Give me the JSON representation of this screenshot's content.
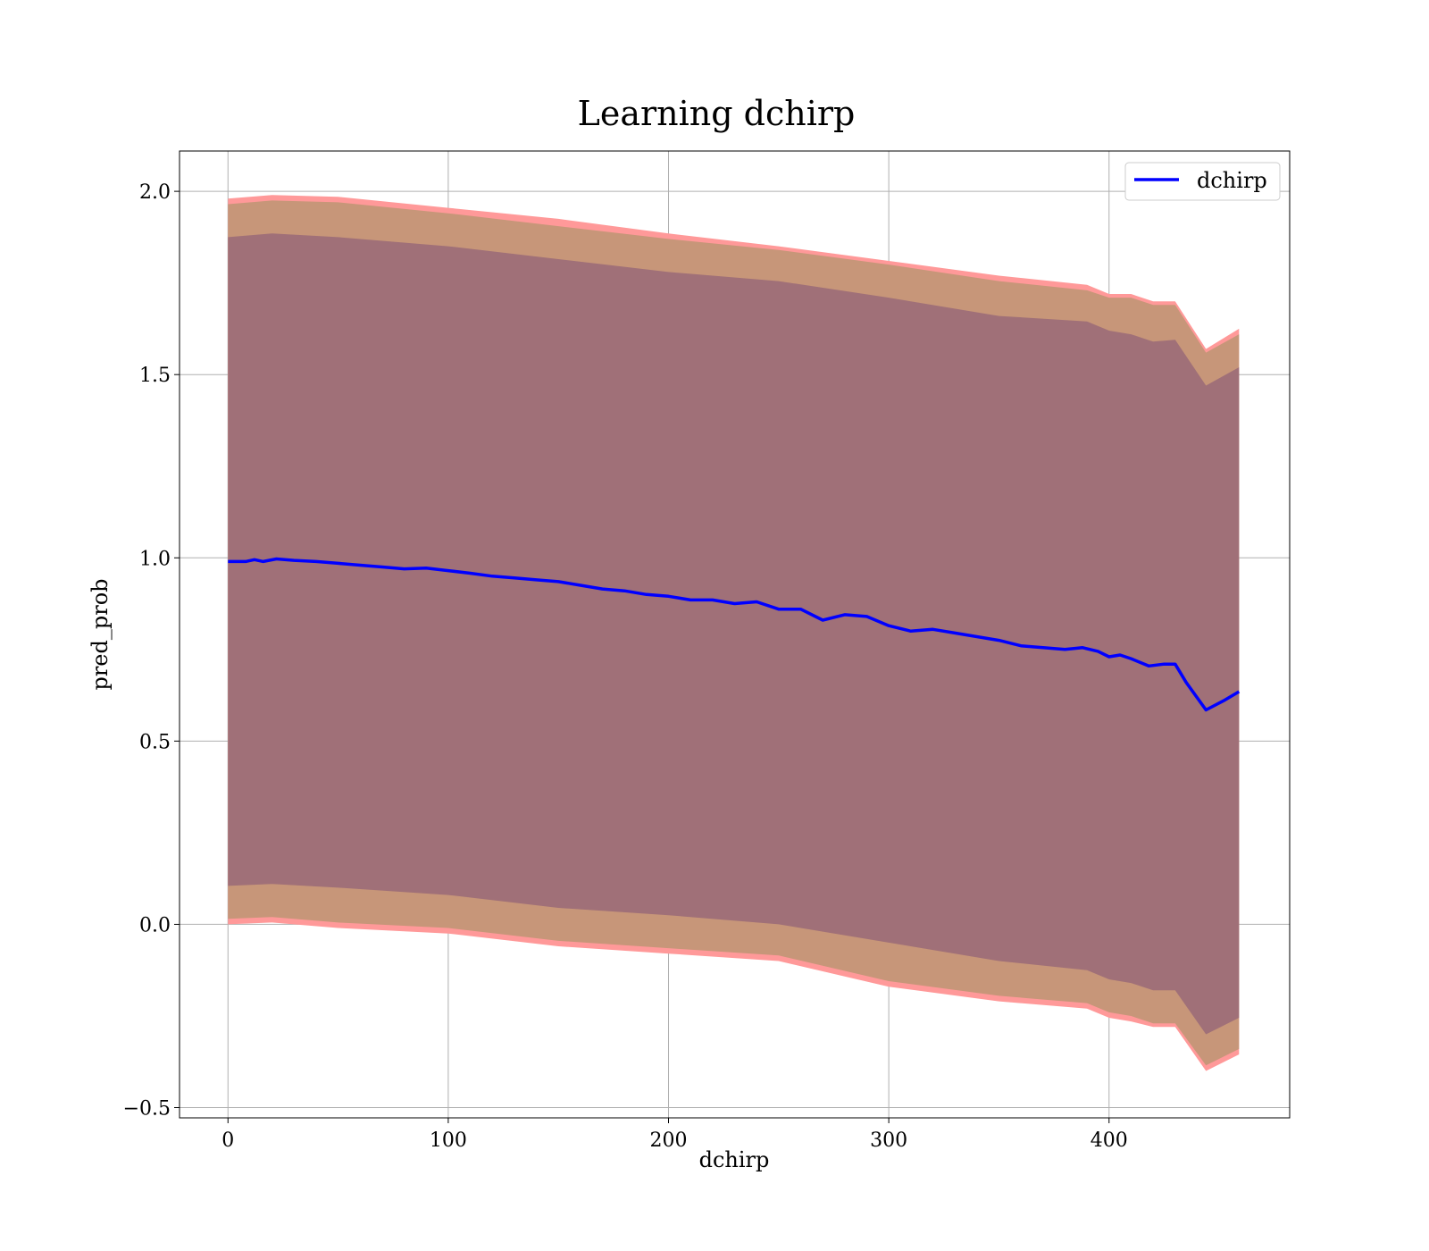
{
  "chart_data": {
    "type": "line",
    "title": "Learning dchirp",
    "xlabel": "dchirp",
    "ylabel": "pred_prob",
    "xlim": [
      -22,
      482
    ],
    "ylim": [
      -0.528,
      2.11
    ],
    "xticks": [
      0,
      100,
      200,
      300,
      400
    ],
    "xtick_labels": [
      "0",
      "100",
      "200",
      "300",
      "400"
    ],
    "yticks": [
      -0.5,
      0.0,
      0.5,
      1.0,
      1.5,
      2.0
    ],
    "ytick_labels": [
      "−0.5",
      "0.0",
      "0.5",
      "1.0",
      "1.5",
      "2.0"
    ],
    "grid": true,
    "legend": {
      "position": "top-right",
      "entries": [
        "dchirp"
      ]
    },
    "series": [
      {
        "name": "dchirp",
        "color": "#0000ff",
        "x": [
          0,
          8,
          12,
          16,
          22,
          30,
          40,
          50,
          60,
          70,
          80,
          90,
          100,
          110,
          120,
          130,
          140,
          150,
          160,
          170,
          180,
          190,
          200,
          210,
          220,
          230,
          240,
          250,
          260,
          270,
          280,
          290,
          300,
          310,
          320,
          330,
          340,
          350,
          360,
          370,
          380,
          388,
          395,
          400,
          405,
          410,
          418,
          425,
          430,
          435,
          444,
          452,
          459
        ],
        "y": [
          0.99,
          0.99,
          0.995,
          0.99,
          0.997,
          0.993,
          0.99,
          0.985,
          0.98,
          0.975,
          0.97,
          0.972,
          0.965,
          0.958,
          0.95,
          0.945,
          0.94,
          0.935,
          0.925,
          0.915,
          0.91,
          0.9,
          0.895,
          0.885,
          0.885,
          0.875,
          0.88,
          0.86,
          0.86,
          0.83,
          0.845,
          0.84,
          0.815,
          0.8,
          0.805,
          0.795,
          0.785,
          0.775,
          0.76,
          0.755,
          0.75,
          0.755,
          0.745,
          0.73,
          0.735,
          0.725,
          0.705,
          0.71,
          0.71,
          0.66,
          0.585,
          0.61,
          0.635
        ]
      }
    ],
    "bands": [
      {
        "name": "outer",
        "color": "#ff9999",
        "x": [
          0,
          20,
          50,
          100,
          150,
          200,
          250,
          300,
          350,
          390,
          400,
          410,
          420,
          430,
          444,
          459
        ],
        "upper": [
          1.98,
          1.99,
          1.985,
          1.955,
          1.925,
          1.885,
          1.85,
          1.81,
          1.77,
          1.745,
          1.72,
          1.72,
          1.7,
          1.7,
          1.57,
          1.625
        ],
        "lower": [
          0.0,
          0.005,
          -0.01,
          -0.025,
          -0.06,
          -0.08,
          -0.1,
          -0.17,
          -0.21,
          -0.23,
          -0.255,
          -0.265,
          -0.28,
          -0.28,
          -0.4,
          -0.355
        ]
      },
      {
        "name": "middle",
        "color": "#c79679",
        "x": [
          0,
          20,
          50,
          100,
          150,
          200,
          250,
          300,
          350,
          390,
          400,
          410,
          420,
          430,
          444,
          459
        ],
        "upper": [
          1.965,
          1.975,
          1.97,
          1.94,
          1.905,
          1.87,
          1.84,
          1.8,
          1.755,
          1.73,
          1.71,
          1.71,
          1.69,
          1.69,
          1.56,
          1.61
        ],
        "lower": [
          0.015,
          0.02,
          0.005,
          -0.01,
          -0.045,
          -0.065,
          -0.085,
          -0.155,
          -0.195,
          -0.215,
          -0.24,
          -0.25,
          -0.27,
          -0.27,
          -0.385,
          -0.34
        ]
      },
      {
        "name": "inner",
        "color": "#a07078",
        "x": [
          0,
          20,
          50,
          100,
          150,
          200,
          250,
          300,
          350,
          390,
          400,
          410,
          420,
          430,
          444,
          459
        ],
        "upper": [
          1.875,
          1.885,
          1.875,
          1.85,
          1.815,
          1.78,
          1.755,
          1.71,
          1.66,
          1.645,
          1.62,
          1.61,
          1.59,
          1.595,
          1.47,
          1.52
        ],
        "lower": [
          0.105,
          0.11,
          0.1,
          0.08,
          0.045,
          0.025,
          0.0,
          -0.05,
          -0.1,
          -0.125,
          -0.15,
          -0.16,
          -0.18,
          -0.18,
          -0.3,
          -0.255
        ]
      }
    ]
  }
}
